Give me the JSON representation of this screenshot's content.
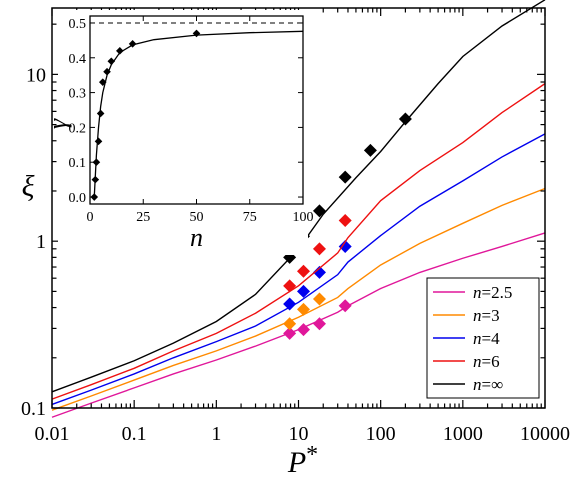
{
  "chart_data": [
    {
      "type": "line",
      "xlabel": "P*",
      "ylabel": "ξ",
      "xscale": "log",
      "yscale": "log",
      "xlim": [
        0.01,
        10000
      ],
      "ylim": [
        0.1,
        25
      ],
      "xticks": [
        "0.01",
        "0.1",
        "1",
        "10",
        "100",
        "1000",
        "10000"
      ],
      "yticks": [
        "0.1",
        "1",
        "10"
      ],
      "legend_position": "lower-right",
      "series": [
        {
          "name": "n=2.5",
          "color": "#e0179a",
          "x": [
            0.01,
            0.03,
            0.1,
            0.3,
            1,
            3,
            10,
            30,
            40,
            100,
            300,
            1000,
            3000,
            10000
          ],
          "y": [
            0.088,
            0.107,
            0.132,
            0.16,
            0.194,
            0.235,
            0.295,
            0.375,
            0.41,
            0.52,
            0.65,
            0.79,
            0.93,
            1.12
          ],
          "markers": {
            "x": [
              7.8,
              11.5,
              18,
              37
            ],
            "y": [
              0.28,
              0.295,
              0.32,
              0.41
            ]
          }
        },
        {
          "name": "n=3",
          "color": "#ff8a00",
          "x": [
            0.01,
            0.03,
            0.1,
            0.3,
            1,
            3,
            10,
            30,
            40,
            100,
            300,
            1000,
            3000,
            10000
          ],
          "y": [
            0.097,
            0.118,
            0.147,
            0.18,
            0.22,
            0.27,
            0.35,
            0.46,
            0.52,
            0.72,
            0.97,
            1.28,
            1.64,
            2.07
          ],
          "markers": {
            "x": [
              7.8,
              11.5,
              18
            ],
            "y": [
              0.32,
              0.39,
              0.45
            ]
          }
        },
        {
          "name": "n=4",
          "color": "#0000ee",
          "x": [
            0.01,
            0.03,
            0.1,
            0.3,
            1,
            3,
            10,
            30,
            40,
            100,
            300,
            1000,
            3000,
            10000
          ],
          "y": [
            0.105,
            0.128,
            0.16,
            0.2,
            0.25,
            0.31,
            0.43,
            0.63,
            0.75,
            1.08,
            1.62,
            2.3,
            3.2,
            4.4
          ],
          "markers": {
            "x": [
              7.8,
              11.5,
              18,
              37
            ],
            "y": [
              0.42,
              0.5,
              0.65,
              0.93
            ]
          }
        },
        {
          "name": "n=6",
          "color": "#ee1111",
          "x": [
            0.01,
            0.03,
            0.1,
            0.3,
            1,
            3,
            10,
            30,
            40,
            100,
            300,
            1000,
            3000,
            10000
          ],
          "y": [
            0.113,
            0.138,
            0.173,
            0.22,
            0.28,
            0.37,
            0.54,
            0.85,
            1.05,
            1.75,
            2.65,
            3.9,
            5.9,
            8.8
          ],
          "markers": {
            "x": [
              7.8,
              11.5,
              18,
              37
            ],
            "y": [
              0.54,
              0.66,
              0.9,
              1.33
            ]
          }
        },
        {
          "name": "n=∞",
          "color": "#000000",
          "x": [
            0.01,
            0.03,
            0.1,
            0.3,
            1,
            3,
            10,
            20,
            50,
            100,
            200,
            500,
            1000,
            3000,
            10000
          ],
          "y": [
            0.125,
            0.153,
            0.192,
            0.245,
            0.33,
            0.48,
            0.9,
            1.45,
            2.4,
            3.45,
            5.2,
            8.8,
            12.8,
            19.5,
            28
          ],
          "markers": {
            "x": [
              7.8,
              11.5,
              18,
              37,
              75,
              200
            ],
            "y": [
              0.8,
              1.07,
              1.52,
              2.42,
              3.5,
              5.4
            ]
          }
        }
      ]
    },
    {
      "type": "scatter",
      "xlabel": "n",
      "ylabel": "γ",
      "xlim": [
        0,
        100
      ],
      "ylim": [
        -0.02,
        0.52
      ],
      "xticks": [
        "0",
        "25",
        "50",
        "75",
        "100"
      ],
      "yticks": [
        "0.0",
        "0.1",
        "0.2",
        "0.3",
        "0.4",
        "0.5"
      ],
      "reference_line": {
        "y": 0.5,
        "style": "dashed"
      },
      "points": {
        "x": [
          2,
          2.5,
          3,
          4,
          5,
          6,
          8,
          10,
          14,
          20,
          50
        ],
        "y": [
          0.0,
          0.05,
          0.1,
          0.16,
          0.24,
          0.33,
          0.36,
          0.39,
          0.42,
          0.44,
          0.47
        ]
      },
      "fit": {
        "x": [
          2,
          2.5,
          3,
          4,
          5,
          6,
          8,
          10,
          14,
          20,
          30,
          50,
          75,
          100
        ],
        "y": [
          0.0,
          0.06,
          0.12,
          0.2,
          0.26,
          0.3,
          0.35,
          0.38,
          0.415,
          0.437,
          0.452,
          0.465,
          0.472,
          0.476
        ]
      }
    }
  ]
}
